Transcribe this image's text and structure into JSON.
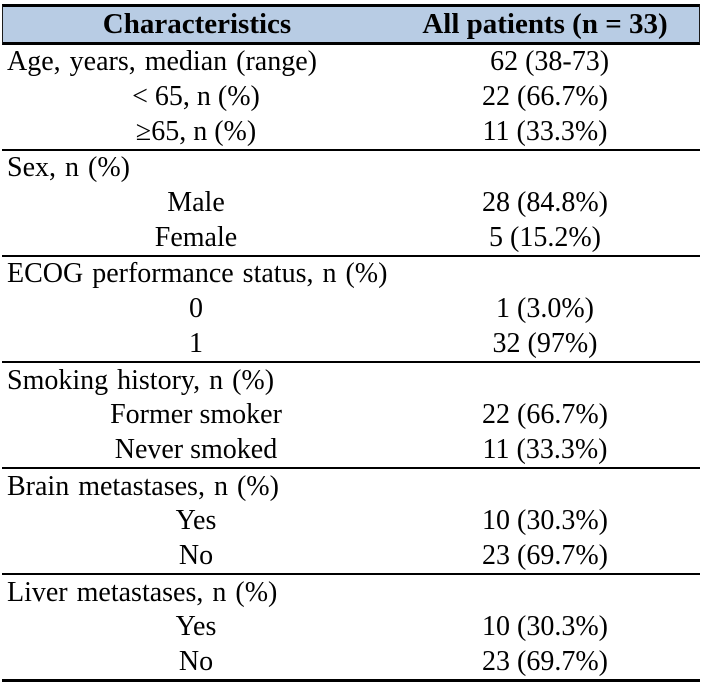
{
  "table": {
    "title_hint": "Patient baseline characteristics table",
    "theme": {
      "header_bg": "#b8cce4",
      "border_color": "#000000",
      "text_color": "#000000"
    },
    "header": {
      "col1": "Characteristics",
      "col2": "All patients (n = 33)"
    },
    "rows": [
      {
        "label": "Age, years, median (range)",
        "value": "62 (38-73)",
        "kind": "section"
      },
      {
        "label": "< 65, n (%)",
        "value": "22 (66.7%)",
        "kind": "sub"
      },
      {
        "label": "≥65, n (%)",
        "value": "11 (33.3%)",
        "kind": "sub"
      },
      {
        "label": "Sex, n (%)",
        "value": "",
        "kind": "section"
      },
      {
        "label": "Male",
        "value": "28 (84.8%)",
        "kind": "sub"
      },
      {
        "label": "Female",
        "value": "5 (15.2%)",
        "kind": "sub"
      },
      {
        "label": "ECOG performance status, n (%)",
        "value": "",
        "kind": "section"
      },
      {
        "label": "0",
        "value": "1 (3.0%)",
        "kind": "sub"
      },
      {
        "label": "1",
        "value": "32 (97%)",
        "kind": "sub"
      },
      {
        "label": "Smoking history, n (%)",
        "value": "",
        "kind": "section"
      },
      {
        "label": "Former smoker",
        "value": "22 (66.7%)",
        "kind": "sub"
      },
      {
        "label": "Never smoked",
        "value": "11 (33.3%)",
        "kind": "sub"
      },
      {
        "label": "Brain metastases, n (%)",
        "value": "",
        "kind": "section"
      },
      {
        "label": "Yes",
        "value": "10 (30.3%)",
        "kind": "sub"
      },
      {
        "label": "No",
        "value": "23 (69.7%)",
        "kind": "sub"
      },
      {
        "label": "Liver metastases, n (%)",
        "value": "",
        "kind": "section"
      },
      {
        "label": "Yes",
        "value": "10 (30.3%)",
        "kind": "sub"
      },
      {
        "label": "No",
        "value": "23 (69.7%)",
        "kind": "sub"
      }
    ]
  }
}
